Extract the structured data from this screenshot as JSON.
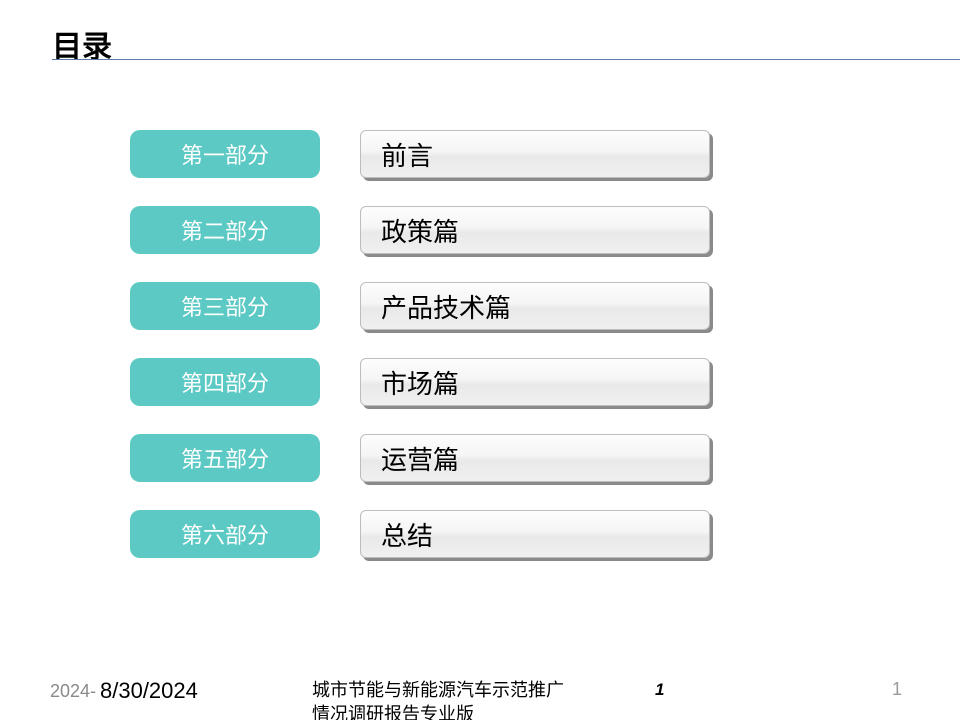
{
  "title": "目录",
  "pill_color": "#5cc9c4",
  "underline_color": "#5a7ba8",
  "sections": [
    {
      "part": "第一部分",
      "label": "前言"
    },
    {
      "part": "第二部分",
      "label": "政策篇"
    },
    {
      "part": "第三部分",
      "label": "产品技术篇"
    },
    {
      "part": "第四部分",
      "label": "市场篇"
    },
    {
      "part": "第五部分",
      "label": "运营篇"
    },
    {
      "part": "第六部分",
      "label": "总结"
    }
  ],
  "footer": {
    "date_left_prefix": "2024-",
    "date_main": "8/30/2024",
    "report_title": "城市节能与新能源汽车示范推广情况调研报告专业版",
    "page_center": "1",
    "page_right": "1"
  }
}
